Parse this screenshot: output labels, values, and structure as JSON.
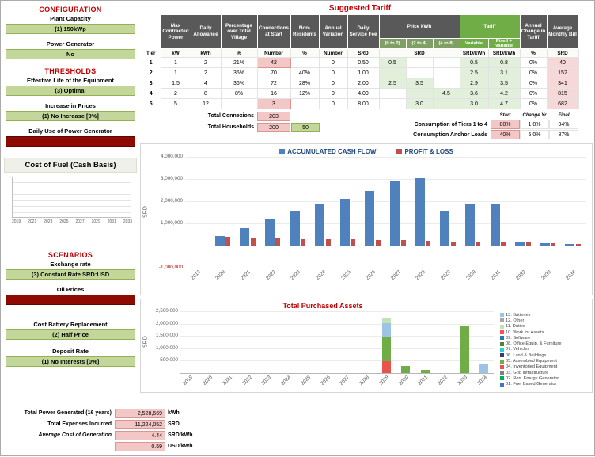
{
  "sidebar": {
    "configuration_header": "CONFIGURATION",
    "plant_capacity_label": "Plant Capacity",
    "plant_capacity_value": "(1) 150kWp",
    "power_generator_label": "Power Generator",
    "power_generator_value": "No",
    "thresholds_header": "THRESHOLDS",
    "effective_life_label": "Effective Life of the Equipment",
    "effective_life_value": "(3) Optimal",
    "increase_prices_label": "Increase in Prices",
    "increase_prices_value": "(1) No Increase [0%]",
    "daily_generator_label": "Daily Use of Power Generator",
    "fuel_chart_title": "Cost of Fuel (Cash Basis)",
    "fuel_chart_years": [
      "2019",
      "2021",
      "2023",
      "2025",
      "2027",
      "2029",
      "2031",
      "2033"
    ],
    "scenarios_header": "SCENARIOS",
    "exchange_rate_label": "Exchange rate",
    "exchange_rate_value": "(3) Constant Rate SRD:USD",
    "oil_prices_label": "Oil Prices",
    "battery_replacement_label": "Cost Battery Replacement",
    "battery_replacement_value": "(2) Half Price",
    "deposit_rate_label": "Deposit Rate",
    "deposit_rate_value": "(1) No Interests [0%]"
  },
  "summary": {
    "rows": [
      {
        "label": "Total Power Generated (16 years)",
        "value": "2,528,669",
        "unit": "kWh",
        "italic": false
      },
      {
        "label": "Total Expenses Incurred",
        "value": "11,224,052",
        "unit": "SRD",
        "italic": false
      },
      {
        "label": "Average Cost of Generation",
        "value": "4.44",
        "unit": "SRD/kWh",
        "italic": true
      },
      {
        "label": "",
        "value": "0.59",
        "unit": "USD/kWh",
        "italic": false
      }
    ]
  },
  "tariff": {
    "title": "Suggested Tariff",
    "group_headers": {
      "max_power": "Max Contracted Power",
      "daily_allowance": "Daily Allowance",
      "pct_village": "Percentage over Total Village",
      "connections": "Connections at Start",
      "non_residents": "Non-Residents",
      "annual_variation": "Annual Variation",
      "service_fee": "Daily Service Fee",
      "price_kwh": "Price kWh",
      "tariff": "Tariff",
      "annual_change": "Annual Change in Tariff",
      "avg_bill": "Average Monthly Bill"
    },
    "price_sub": [
      "(0 to 2)",
      "(2 to 4)",
      "(4 to 8)"
    ],
    "tariff_sub": [
      "Variable",
      "Fixed + Variable"
    ],
    "units": {
      "tier": "Tier",
      "kw": "kW",
      "kwh": "kWh",
      "pct": "%",
      "conn": "Number",
      "nonres": "%",
      "annvar": "Number",
      "fee": "SRD",
      "price": "SRD",
      "variable": "SRD/kWh",
      "fixed_variable": "SRD/kWh",
      "chg": "%",
      "bill": "SRD"
    },
    "rows": [
      {
        "tier": "1",
        "kw": "1",
        "kwh": "2",
        "pct": "21%",
        "conn": "42",
        "nonres": "",
        "annvar": "0",
        "fee": "0.50",
        "p1": "0.5",
        "p2": "",
        "p3": "",
        "variable": "0.5",
        "fixed_variable": "0.8",
        "chg": "0%",
        "bill": "40"
      },
      {
        "tier": "2",
        "kw": "1",
        "kwh": "2",
        "pct": "35%",
        "conn": "70",
        "nonres": "40%",
        "annvar": "0",
        "fee": "1.00",
        "p1": "",
        "p2": "",
        "p3": "",
        "variable": "2.5",
        "fixed_variable": "3.1",
        "chg": "0%",
        "bill": "152"
      },
      {
        "tier": "3",
        "kw": "1.5",
        "kwh": "4",
        "pct": "36%",
        "conn": "72",
        "nonres": "28%",
        "annvar": "0",
        "fee": "2.00",
        "p1": "2.5",
        "p2": "3.5",
        "p3": "",
        "variable": "2.9",
        "fixed_variable": "3.5",
        "chg": "0%",
        "bill": "341"
      },
      {
        "tier": "4",
        "kw": "2",
        "kwh": "8",
        "pct": "8%",
        "conn": "16",
        "nonres": "12%",
        "annvar": "0",
        "fee": "4.00",
        "p1": "",
        "p2": "",
        "p3": "4.5",
        "variable": "3.6",
        "fixed_variable": "4.2",
        "chg": "0%",
        "bill": "815"
      },
      {
        "tier": "5",
        "kw": "5",
        "kwh": "12",
        "pct": "",
        "conn": "3",
        "nonres": "",
        "annvar": "0",
        "fee": "8.00",
        "p1": "",
        "p2": "3.0",
        "p3": "",
        "variable": "3.0",
        "fixed_variable": "4.7",
        "chg": "0%",
        "bill": "682"
      }
    ],
    "totals": {
      "connexions_label": "Total Connexions",
      "connexions_value": "203",
      "households_label": "Total Households",
      "households_value": "200",
      "households_extra": "50"
    },
    "consumption": {
      "col_headers": [
        "Start",
        "Change Yr",
        "Final"
      ],
      "rows": [
        {
          "label": "Consumption of Tiers 1 to 4",
          "values": [
            "80%",
            "1.0%",
            "94%"
          ]
        },
        {
          "label": "Consumption Anchor Loads",
          "values": [
            "40%",
            "5.0%",
            "87%"
          ]
        }
      ]
    }
  },
  "chart_data": [
    {
      "id": "cashflow",
      "type": "bar",
      "title": "",
      "ylabel": "SRD",
      "ylim": [
        -1000000,
        4000000
      ],
      "ytick_step": 1000000,
      "yticks": [
        {
          "label": "4,000,000",
          "value": 4000000
        },
        {
          "label": "3,000,000",
          "value": 3000000
        },
        {
          "label": "2,000,000",
          "value": 2000000
        },
        {
          "label": "1,000,000",
          "value": 1000000
        },
        {
          "label": "-1,000,000",
          "value": -1000000
        }
      ],
      "categories": [
        "2019",
        "2020",
        "2021",
        "2022",
        "2023",
        "2024",
        "2025",
        "2026",
        "2027",
        "2028",
        "2029",
        "2030",
        "2031",
        "2032",
        "2033",
        "2034"
      ],
      "series": [
        {
          "name": "ACCUMULATED CASH FLOW",
          "color": "#4F81BD",
          "values": [
            0,
            420000,
            800000,
            1200000,
            1520000,
            1860000,
            2100000,
            2450000,
            2900000,
            3050000,
            1520000,
            1860000,
            1900000,
            160000,
            120000,
            80000
          ]
        },
        {
          "name": "PROFIT & LOSS",
          "color": "#C0504D",
          "values": [
            0,
            400000,
            330000,
            310000,
            300000,
            280000,
            270000,
            260000,
            250000,
            230000,
            170000,
            160000,
            150000,
            130000,
            120000,
            60000
          ]
        }
      ],
      "legend_position": "top",
      "grid": true
    },
    {
      "id": "assets",
      "type": "stacked-bar",
      "title": "Total Purchased Assets",
      "ylabel": "SRD",
      "ylim": [
        0,
        2500000
      ],
      "ytick_step": 500000,
      "yticks": [
        {
          "label": "2,500,000",
          "value": 2500000
        },
        {
          "label": "2,000,000",
          "value": 2000000
        },
        {
          "label": "1,500,000",
          "value": 1500000
        },
        {
          "label": "1,000,000",
          "value": 1000000
        },
        {
          "label": "500,000",
          "value": 500000
        }
      ],
      "categories": [
        "2019",
        "2020",
        "2021",
        "2022",
        "2023",
        "2024",
        "2025",
        "2026",
        "2027",
        "2028",
        "2029",
        "2030",
        "2031",
        "2032",
        "2033",
        "2034"
      ],
      "stacks": [
        [],
        [],
        [],
        [],
        [],
        [],
        [],
        [],
        [],
        [],
        [
          {
            "series": "04. Inventoried Equipment",
            "value": 480000
          },
          {
            "series": "05. Assembled Equipment",
            "value": 980000
          },
          {
            "series": "13. Batteries",
            "value": 560000
          },
          {
            "series": "11. Duties",
            "value": 230000
          }
        ],
        [
          {
            "series": "05. Assembled Equipment",
            "value": 300000
          }
        ],
        [
          {
            "series": "05. Assembled Equipment",
            "value": 130000
          }
        ],
        [],
        [
          {
            "series": "05. Assembled Equipment",
            "value": 1900000
          }
        ],
        [
          {
            "series": "13. Batteries",
            "value": 350000
          }
        ]
      ],
      "legend": [
        {
          "label": "13. Batteries",
          "color": "#9DC3E6"
        },
        {
          "label": "12. Other",
          "color": "#A6A6A6"
        },
        {
          "label": "11. Duties",
          "color": "#C5E0B4"
        },
        {
          "label": "10. Work for Assets",
          "color": "#FF5050"
        },
        {
          "label": "09. Software",
          "color": "#2E75B6"
        },
        {
          "label": "08. Office Equip. & Furniture",
          "color": "#548235"
        },
        {
          "label": "07. Vehicles",
          "color": "#33CCCC"
        },
        {
          "label": "06. Land & Buildings",
          "color": "#264478"
        },
        {
          "label": "05. Assembled Equipment",
          "color": "#70AD47"
        },
        {
          "label": "04. Inventoried Equipment",
          "color": "#E8534E"
        },
        {
          "label": "03. Grid Infrastructure",
          "color": "#7F7F7F"
        },
        {
          "label": "02. Ren. Energy Generator",
          "color": "#00B050"
        },
        {
          "label": "01. Fuel Based Generator",
          "color": "#4472C4"
        }
      ],
      "legend_position": "right",
      "grid": true
    }
  ]
}
